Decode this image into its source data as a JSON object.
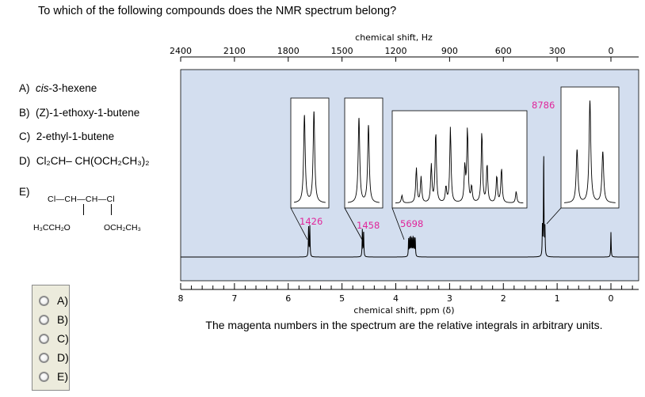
{
  "question": "To which of the following compounds does the NMR spectrum belong?",
  "options": {
    "A": {
      "label": "A)",
      "name_italic": "cis",
      "name_rest": "-3-hexene"
    },
    "B": {
      "label": "B)",
      "name": "(Z)-1-ethoxy-1-butene"
    },
    "C": {
      "label": "C)",
      "name": "2-ethyl-1-butene"
    },
    "D": {
      "label": "D)",
      "formula": "Cl₂CH– CH(OCH₂CH₃)₂"
    },
    "E": {
      "label": "E)",
      "top": "Cl—CH—CH—Cl",
      "left": "H₃CCH₂O",
      "right": "OCH₂CH₃"
    }
  },
  "answers": [
    {
      "label": "A)",
      "selected": false
    },
    {
      "label": "B)",
      "selected": false
    },
    {
      "label": "C)",
      "selected": false
    },
    {
      "label": "D)",
      "selected": false
    },
    {
      "label": "E)",
      "selected": false
    }
  ],
  "note": "The magenta numbers in the spectrum are the relative integrals in arbitrary units.",
  "chart_data": {
    "type": "line",
    "title": "",
    "top_axis": {
      "label": "chemical shift, Hz",
      "ticks": [
        "2400",
        "2100",
        "1800",
        "1500",
        "1200",
        "900",
        "600",
        "300",
        "0"
      ],
      "range": [
        2400,
        0
      ]
    },
    "bottom_axis": {
      "label": "chemical shift, ppm (δ)",
      "ticks": [
        "8",
        "7",
        "6",
        "5",
        "4",
        "3",
        "2",
        "1",
        "0"
      ],
      "range": [
        8,
        0
      ]
    },
    "background_color": "#d3deef",
    "integral_color": "#e0259a",
    "peaks": [
      {
        "ppm": 5.61,
        "multiplicity": "doublet",
        "integral": "1426"
      },
      {
        "ppm": 4.61,
        "multiplicity": "doublet",
        "integral": "1458"
      },
      {
        "ppm": 3.7,
        "multiplicity": "multiplet",
        "integral": "5698"
      },
      {
        "ppm": 1.25,
        "multiplicity": "triplet",
        "integral": "8786"
      },
      {
        "ppm": 0.0,
        "multiplicity": "singlet",
        "integral": ""
      }
    ]
  }
}
